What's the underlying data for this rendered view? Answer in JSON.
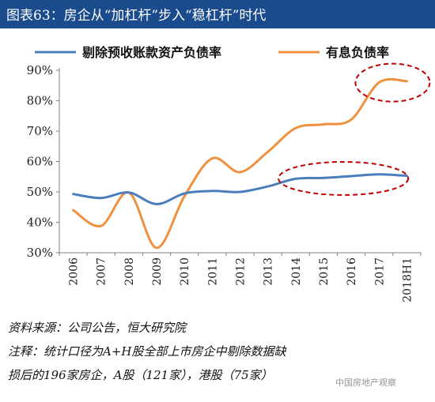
{
  "title": "图表63：房企从“加杠杆”步入“稳杠杆”时代",
  "chart_data": {
    "type": "line",
    "categories": [
      "2006",
      "2007",
      "2008",
      "2009",
      "2010",
      "2011",
      "2012",
      "2013",
      "2014",
      "2015",
      "2016",
      "2017",
      "2018H1"
    ],
    "yticks": [
      "90%",
      "80%",
      "70%",
      "60%",
      "50%",
      "40%",
      "30%"
    ],
    "ylim": [
      30,
      90
    ],
    "grid": false,
    "legend_position": "top",
    "series": [
      {
        "name": "剔除预收账款资产负债率",
        "color": "#4a7ebb",
        "values": [
          49.3,
          48.0,
          49.8,
          46.0,
          49.5,
          50.3,
          50.0,
          51.8,
          54.3,
          54.6,
          55.2,
          55.8,
          55.3
        ]
      },
      {
        "name": "有息负债率",
        "color": "#f0913f",
        "values": [
          44.0,
          38.8,
          49.8,
          31.6,
          48.6,
          61.0,
          56.5,
          63.2,
          71.0,
          72.2,
          73.8,
          86.0,
          86.4
        ]
      }
    ],
    "annotation_color": "#c00000"
  },
  "footer": {
    "source": "资料来源：公司公告，恒大研究院",
    "note_line1": "注释：统计口径为A+H股全部上市房企中剔除数据缺",
    "note_line2": "损后的196家房企，A股（121家），港股（75家）"
  },
  "watermark": "中国房地产观察"
}
